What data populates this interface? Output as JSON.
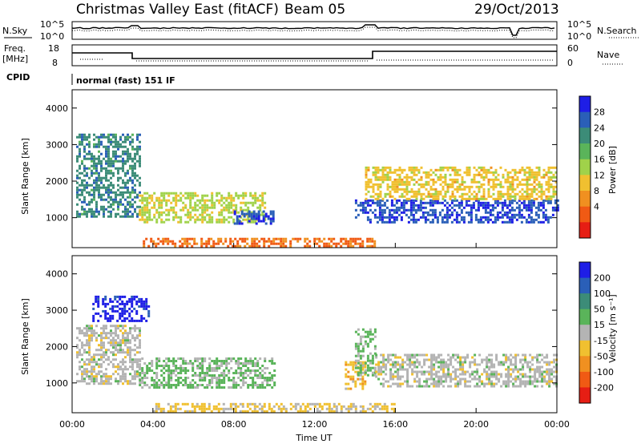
{
  "header": {
    "station": "Christmas Valley East (fitACF)",
    "beam": "Beam 05",
    "date": "29/Oct/2013"
  },
  "noise_panel": {
    "left_label": "N.Sky",
    "right_label": "N.Search",
    "left_ticks": [
      "10^5",
      "10^0"
    ],
    "right_ticks": [
      "10^5",
      "10^0"
    ]
  },
  "freq_panel": {
    "left_label_1": "Freq.",
    "left_label_2": "[MHz]",
    "right_label": "Nave",
    "left_ticks": [
      "18",
      "8"
    ],
    "right_ticks": [
      "60",
      "0"
    ]
  },
  "cpid": {
    "label": "CPID",
    "mode": "normal (fast) 151 IF"
  },
  "colors": {
    "power_scale": [
      "#1e1ee6",
      "#2a5fb8",
      "#3c8c78",
      "#5ab45a",
      "#a0d24a",
      "#f0c030",
      "#f09020",
      "#f05a14",
      "#e61e14"
    ],
    "velocity_scale": [
      "#1e1ee6",
      "#2a5fb8",
      "#3c8c78",
      "#5ab45a",
      "#b4b4b4",
      "#f0c030",
      "#f09020",
      "#f05a14",
      "#e61e14"
    ]
  },
  "chart_data": [
    {
      "type": "heatmap",
      "name": "power",
      "ylabel": "Slant Range [km]",
      "xlabel": "Time UT",
      "xlim": [
        "00:00",
        "24:00"
      ],
      "x_ticks": [
        "00:00",
        "04:00",
        "08:00",
        "12:00",
        "16:00",
        "20:00",
        "00:00"
      ],
      "ylim": [
        180,
        4500
      ],
      "y_ticks": [
        "1000",
        "2000",
        "3000",
        "4000"
      ],
      "colorbar": {
        "label": "Power [dB]",
        "ticks": [
          "28",
          "24",
          "20",
          "16",
          "12",
          "8",
          "4"
        ],
        "range": [
          0,
          30
        ]
      },
      "echo_regions": [
        {
          "t_start": 0.2,
          "t_end": 3.3,
          "r_start": 1000,
          "r_end": 3300,
          "value": 22
        },
        {
          "t_start": 3.3,
          "t_end": 9.5,
          "r_start": 900,
          "r_end": 1700,
          "value": 14
        },
        {
          "t_start": 8.0,
          "t_end": 10.0,
          "r_start": 850,
          "r_end": 1200,
          "value": 26
        },
        {
          "t_start": 14.0,
          "t_end": 24.0,
          "r_start": 850,
          "r_end": 1500,
          "value": 26
        },
        {
          "t_start": 14.5,
          "t_end": 24.0,
          "r_start": 1500,
          "r_end": 2400,
          "value": 12
        },
        {
          "t_start": 3.5,
          "t_end": 15.0,
          "r_start": 200,
          "r_end": 450,
          "value": 6
        }
      ]
    },
    {
      "type": "heatmap",
      "name": "velocity",
      "ylabel": "Slant Range [km]",
      "xlabel": "Time UT",
      "xlim": [
        "00:00",
        "24:00"
      ],
      "x_ticks": [
        "00:00",
        "04:00",
        "08:00",
        "12:00",
        "16:00",
        "20:00",
        "00:00"
      ],
      "ylim": [
        180,
        4500
      ],
      "y_ticks": [
        "1000",
        "2000",
        "3000",
        "4000"
      ],
      "colorbar": {
        "label": "Velocity [m s⁻¹]",
        "ticks": [
          "200",
          "100",
          "50",
          "15",
          "-15",
          "-50",
          "-100",
          "-200"
        ],
        "range": [
          -250,
          250
        ]
      },
      "echo_regions": [
        {
          "t_start": 0.2,
          "t_end": 3.3,
          "r_start": 1000,
          "r_end": 2600,
          "value": 0
        },
        {
          "t_start": 1.0,
          "t_end": 3.8,
          "r_start": 2700,
          "r_end": 3400,
          "value": 220
        },
        {
          "t_start": 3.3,
          "t_end": 10.0,
          "r_start": 900,
          "r_end": 1700,
          "value": 40
        },
        {
          "t_start": 13.5,
          "t_end": 14.5,
          "r_start": 850,
          "r_end": 1600,
          "value": -60
        },
        {
          "t_start": 14.0,
          "t_end": 15.0,
          "r_start": 1200,
          "r_end": 2500,
          "value": 40
        },
        {
          "t_start": 15.0,
          "t_end": 24.0,
          "r_start": 900,
          "r_end": 1800,
          "value": 0
        },
        {
          "t_start": 4.0,
          "t_end": 16.0,
          "r_start": 200,
          "r_end": 450,
          "value": -40
        }
      ]
    }
  ]
}
